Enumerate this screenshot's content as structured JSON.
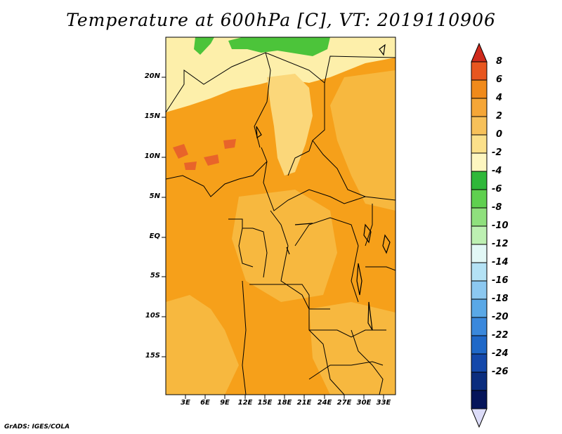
{
  "title": "Temperature at 600hPa [C], VT: 2019110906",
  "credit": "GrADS: IGES/COLA",
  "lat_labels": [
    "20N",
    "15N",
    "10N",
    "5N",
    "EQ",
    "5S",
    "10S",
    "15S"
  ],
  "lon_labels": [
    "3E",
    "6E",
    "9E",
    "12E",
    "15E",
    "18E",
    "21E",
    "24E",
    "27E",
    "30E",
    "33E"
  ],
  "colorbar": {
    "labels": [
      "8",
      "6",
      "4",
      "2",
      "0",
      "-2",
      "-4",
      "-6",
      "-8",
      "-10",
      "-12",
      "-14",
      "-16",
      "-18",
      "-20",
      "-22",
      "-24",
      "-26"
    ],
    "colors": [
      "#cf2a1c",
      "#e8561f",
      "#f08a1b",
      "#f5a637",
      "#f7c15a",
      "#fbe08a",
      "#fdf6c0",
      "#2fb83a",
      "#5fd04f",
      "#8fe07d",
      "#bdf0b2",
      "#e2f8f6",
      "#b4e2f5",
      "#8cc8f0",
      "#5aa8e6",
      "#3a88dc",
      "#1f68c8",
      "#1448aa",
      "#0b2d7e",
      "#06155a",
      "#dcdcf8"
    ]
  },
  "field_colors": {
    "c_4to6": "#e8642a",
    "c_2to4": "#f6a01a",
    "c_0to2": "#f7b83f",
    "c_m2to0": "#fbd77a",
    "c_m4tom2": "#fdefaa",
    "c_m6tom4": "#4cc43a"
  }
}
